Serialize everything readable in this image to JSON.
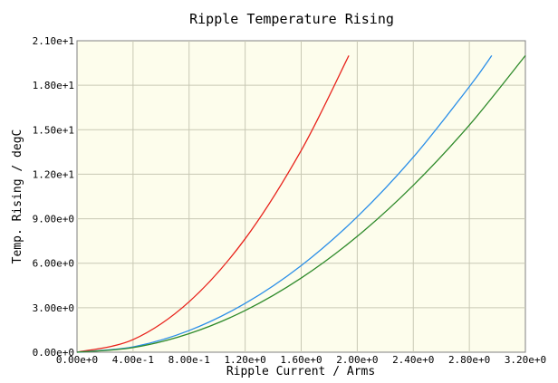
{
  "chart_data": {
    "type": "line",
    "title": "Ripple Temperature Rising",
    "xlabel": "Ripple Current / Arms",
    "ylabel": "Temp. Rising / degC",
    "xlim": [
      0,
      3.2
    ],
    "ylim": [
      0,
      21
    ],
    "x_ticks": [
      "0.00e+0",
      "4.00e-1",
      "8.00e-1",
      "1.20e+0",
      "1.60e+0",
      "2.00e+0",
      "2.40e+0",
      "2.80e+0",
      "3.20e+0"
    ],
    "y_ticks": [
      "0.00e+0",
      "3.00e+0",
      "6.00e+0",
      "9.00e+0",
      "1.20e+1",
      "1.50e+1",
      "1.80e+1",
      "2.10e+1"
    ],
    "grid": true,
    "plot_background": "#fdfdec",
    "grid_color": "#c8c8b4",
    "series": [
      {
        "color": "#e8211a",
        "x": [
          0,
          0.4,
          0.8,
          1.2,
          1.6,
          1.94
        ],
        "y": [
          0,
          0.85,
          3.4,
          7.65,
          13.6,
          20.0
        ]
      },
      {
        "color": "#2a8ee8",
        "x": [
          0,
          0.4,
          0.8,
          1.2,
          1.6,
          2.0,
          2.4,
          2.8,
          2.96
        ],
        "y": [
          0,
          0.36,
          1.46,
          3.29,
          5.84,
          9.13,
          13.15,
          17.9,
          20.0
        ]
      },
      {
        "color": "#2e8a2a",
        "x": [
          0,
          0.4,
          0.8,
          1.2,
          1.6,
          2.0,
          2.4,
          2.8,
          3.2
        ],
        "y": [
          0,
          0.31,
          1.25,
          2.81,
          5.0,
          7.81,
          11.25,
          15.31,
          20.0
        ]
      }
    ]
  }
}
